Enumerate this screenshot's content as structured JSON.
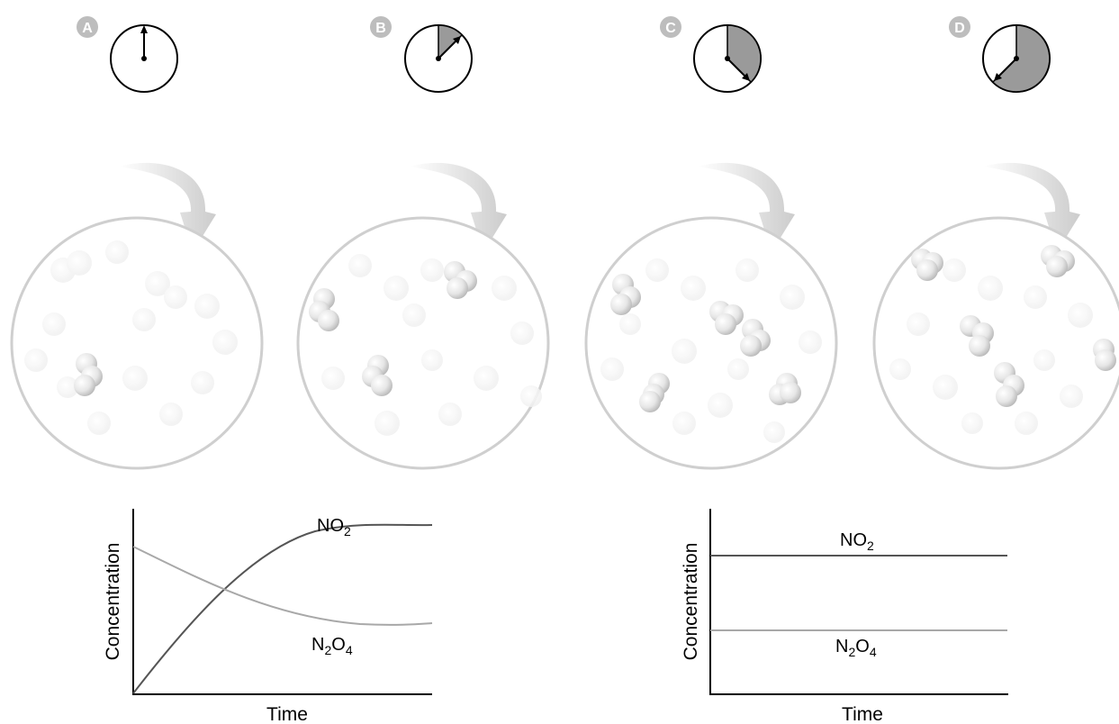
{
  "panels": [
    {
      "letter": "A",
      "elapsed_fraction": 0.0
    },
    {
      "letter": "B",
      "elapsed_fraction": 0.125
    },
    {
      "letter": "C",
      "elapsed_fraction": 0.375
    },
    {
      "letter": "D",
      "elapsed_fraction": 0.625
    }
  ],
  "chart_data": [
    {
      "type": "line",
      "xlabel": "Time",
      "ylabel": "Concentration",
      "series": [
        {
          "name": "NO",
          "subscript": "2",
          "trend": "rising-to-plateau"
        },
        {
          "name_parts": [
            "N",
            "2",
            "O",
            "4"
          ],
          "trend": "falling-to-plateau"
        }
      ]
    },
    {
      "type": "line",
      "xlabel": "Time",
      "ylabel": "Concentration",
      "series": [
        {
          "name": "NO",
          "subscript": "2",
          "trend": "constant"
        },
        {
          "name_parts": [
            "N",
            "2",
            "O",
            "4"
          ],
          "trend": "constant"
        }
      ]
    }
  ],
  "colors": {
    "badge": "#bdbdbd",
    "clock_fill": "#9a9a9a",
    "arrow": "#d0d0d0",
    "circle_border": "#cfcfcf",
    "no2_line": "#555555",
    "n2o4_line": "#a8a8a8"
  }
}
